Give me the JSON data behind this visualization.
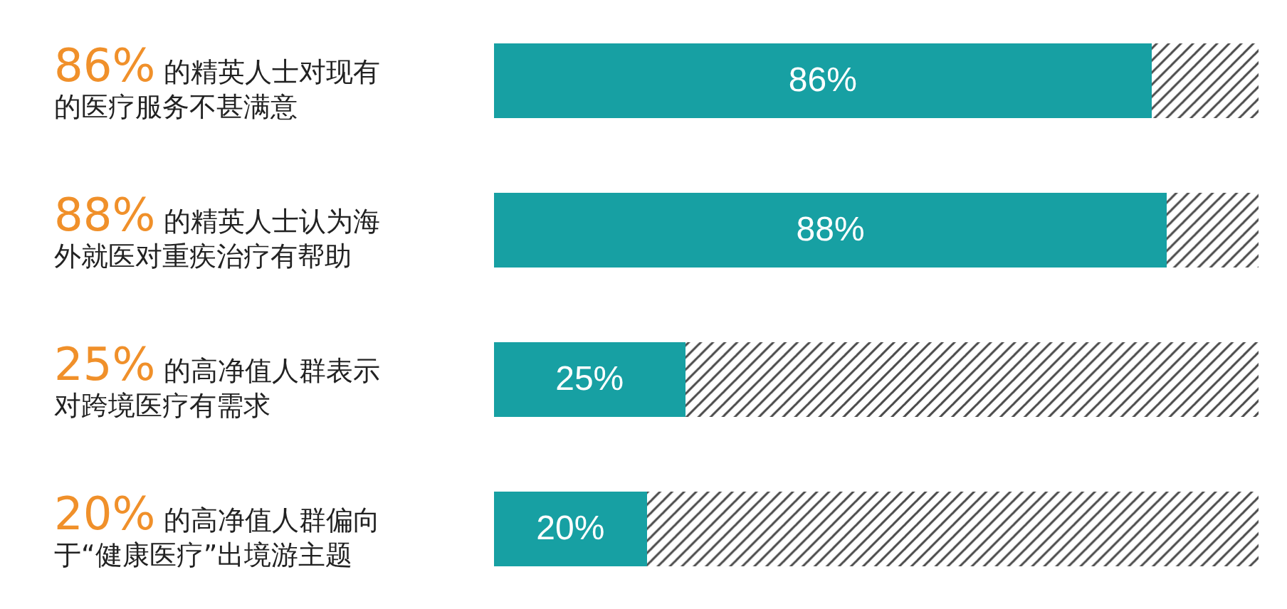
{
  "chart_data": {
    "type": "bar",
    "orientation": "horizontal",
    "stacked": true,
    "categories": [
      "86% 的精英人士对现有的医疗服务不甚满意",
      "88% 的精英人士认为海外就医对重疾治疗有帮助",
      "25% 的高净值人群表示对跨境医疗有需求",
      "20% 的高净值人群偏向于“健康医疗”出境游主题"
    ],
    "xlim": [
      0,
      100
    ],
    "series": [
      {
        "color": "#17a0a3",
        "values": [
          86,
          88,
          25,
          20
        ],
        "value_labels": [
          "86%",
          "88%",
          "25%",
          "20%"
        ]
      },
      {
        "color": "#4a4a4a",
        "values": [
          14,
          12,
          75,
          80
        ]
      }
    ]
  }
}
